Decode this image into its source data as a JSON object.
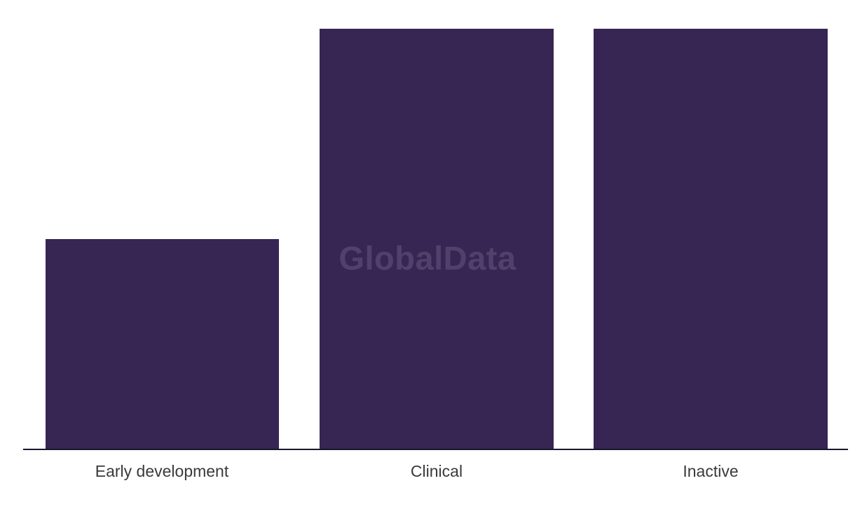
{
  "page": {
    "background": "#ffffff"
  },
  "chart_data": {
    "type": "bar",
    "categories": [
      "Early development",
      "Clinical",
      "Inactive"
    ],
    "values": [
      50,
      100,
      100
    ],
    "title": "",
    "xlabel": "",
    "ylabel": "",
    "ylim": [
      0,
      107
    ],
    "grid": false,
    "legend": null,
    "orientation": "vertical",
    "bar_color": "#372554",
    "axis_line_color": "#17172c",
    "category_label_color": "#3a3a3a",
    "watermark_text": "GlobalData"
  }
}
